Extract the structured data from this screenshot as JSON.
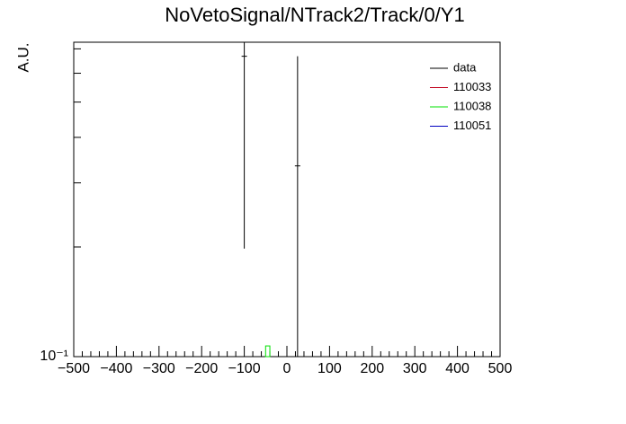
{
  "chart_data": {
    "type": "errorbar-hist",
    "title": "NoVetoSignal/NTrack2/Track/0/Y1",
    "y_label": "A.U.",
    "log_y": true,
    "xlim": [
      -500,
      500
    ],
    "ylim": [
      0.1,
      0.73
    ],
    "xticks": [
      {
        "value": -500,
        "label": "−500"
      },
      {
        "value": -400,
        "label": "−400"
      },
      {
        "value": -300,
        "label": "−300"
      },
      {
        "value": -200,
        "label": "−200"
      },
      {
        "value": -100,
        "label": "−100"
      },
      0,
      100,
      200,
      300,
      400,
      500
    ],
    "yticks": [
      {
        "value": 0.1,
        "label": "10⁻¹"
      }
    ],
    "yminorticks": [
      0.2,
      0.3,
      0.4,
      0.5,
      0.6,
      0.7
    ],
    "legend": "top-right",
    "series": [
      {
        "name": "data",
        "color": "#000000",
        "x": [
          -100,
          25
        ],
        "values": [
          0.668,
          0.334
        ],
        "errors": [
          0.47,
          0.334
        ]
      },
      {
        "name": "110033",
        "color": "#c0001a",
        "bins": [],
        "values": []
      },
      {
        "name": "110038",
        "color": "#00e000",
        "bins": [
          -50,
          -40
        ],
        "values": [
          0.107
        ]
      },
      {
        "name": "110051",
        "color": "#0000c0",
        "bins": [],
        "values": []
      }
    ]
  }
}
